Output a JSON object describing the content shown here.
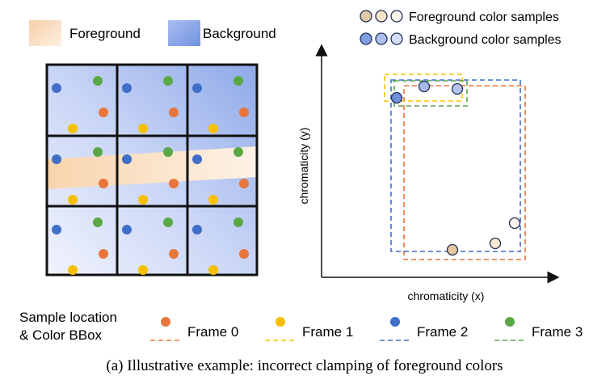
{
  "legend_top": {
    "foreground_label": "Foreground",
    "background_label": "Background",
    "fg_samples_label": "Foreground color samples",
    "bg_samples_label": "Background color samples"
  },
  "plot": {
    "xlabel": "chromaticity (x)",
    "ylabel": "chromaticity (y)"
  },
  "legend_bottom": {
    "title_line1": "Sample location",
    "title_line2": "& Color BBox",
    "frames": [
      "Frame 0",
      "Frame 1",
      "Frame 2",
      "Frame 3"
    ]
  },
  "caption": "(a) Illustrative example: incorrect clamping of foreground colors",
  "colors": {
    "frame0": "#e8763a",
    "frame1": "#f6c000",
    "frame2": "#3f6fc6",
    "frame3": "#5aa845",
    "foreground": "#f8d9b6",
    "background": "#8eaae6"
  }
}
